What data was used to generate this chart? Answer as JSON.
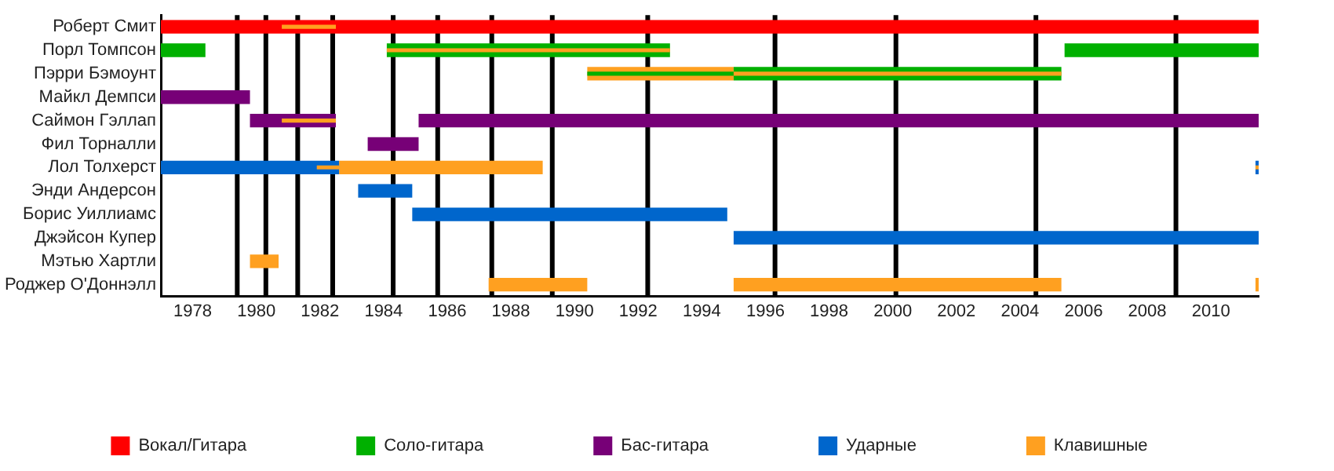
{
  "chart_data": {
    "type": "bar",
    "orientation": "horizontal",
    "categories": [
      "Роберт Смит",
      "Порл Томпсон",
      "Пэрри Бэмоунт",
      "Майкл Демпси",
      "Саймон Гэллап",
      "Фил Торналли",
      "Лол Толхерст",
      "Энди Андерсон",
      "Борис Уиллиамс",
      "Джэйсон Купер",
      "Мэтью Хартли",
      "Роджер О'Доннэлл"
    ],
    "series": [
      {
        "name": "Вокал/Гитара",
        "color": "#ff0000",
        "base": [
          1977,
          null,
          null,
          null,
          null,
          null,
          null,
          null,
          null,
          null,
          null,
          null
        ],
        "values": [
          34.5,
          null,
          null,
          null,
          null,
          null,
          null,
          null,
          null,
          null,
          null,
          null
        ]
      },
      {
        "name": "Соло-гитара",
        "color": "#00b000",
        "base": [
          null,
          1977,
          1995.0,
          null,
          null,
          null,
          null,
          null,
          null,
          null,
          null,
          null
        ],
        "values": [
          null,
          1.4,
          10.3,
          null,
          null,
          null,
          null,
          null,
          null,
          null,
          null,
          null
        ]
      },
      {
        "name": "Бас-гитара",
        "color": "#770077",
        "base": [
          null,
          null,
          null,
          1977,
          1979.8,
          1983.5,
          null,
          null,
          null,
          null,
          null,
          null
        ],
        "values": [
          null,
          null,
          null,
          2.8,
          2.7,
          1.6,
          null,
          null,
          null,
          null,
          null,
          null
        ]
      },
      {
        "name": "Ударные",
        "color": "#0066cc",
        "base": [
          null,
          null,
          null,
          null,
          null,
          null,
          1977,
          1983.2,
          1984.9,
          1995.0,
          null,
          null
        ],
        "values": [
          null,
          null,
          null,
          null,
          null,
          null,
          5.6,
          1.7,
          9.9,
          16.5,
          null,
          null
        ]
      },
      {
        "name": "Клавишные",
        "color": "#ffa020",
        "base": [
          1980.8,
          null,
          1990.4,
          null,
          1980.8,
          null,
          1981.9,
          null,
          null,
          null,
          1979.8,
          1987.3
        ],
        "values": [
          1.7,
          null,
          4.6,
          null,
          1.7,
          null,
          0.7,
          null,
          null,
          null,
          0.9,
          3.1
        ]
      },
      {
        "color": "#00b000",
        "base": [
          null,
          1984.1,
          1990.4,
          null,
          null,
          null,
          null,
          null,
          null,
          null,
          null,
          null
        ],
        "values": [
          null,
          8.9,
          4.6,
          null,
          null,
          null,
          null,
          null,
          null,
          null,
          null,
          null
        ]
      },
      {
        "color": "#770077",
        "base": [
          null,
          null,
          null,
          null,
          1985.1,
          null,
          null,
          null,
          null,
          null,
          null,
          null
        ],
        "values": [
          null,
          null,
          null,
          null,
          26.4,
          null,
          null,
          null,
          null,
          null,
          null,
          null
        ]
      },
      {
        "color": "#ffa020",
        "base": [
          null,
          1984.1,
          1995.0,
          null,
          null,
          null,
          1982.6,
          null,
          null,
          null,
          null,
          1995.0
        ],
        "values": [
          null,
          8.9,
          10.3,
          null,
          null,
          null,
          6.4,
          null,
          null,
          null,
          null,
          10.3
        ]
      },
      {
        "color": "#00b000",
        "base": [
          null,
          2005.4,
          null,
          null,
          null,
          null,
          null,
          null,
          null,
          null,
          null,
          null
        ],
        "values": [
          null,
          6.1,
          null,
          null,
          null,
          null,
          null,
          null,
          null,
          null,
          null,
          null
        ]
      },
      {
        "color": "#0066cc",
        "base": [
          null,
          null,
          null,
          null,
          null,
          null,
          2011.4,
          null,
          null,
          null,
          null,
          null
        ],
        "values": [
          null,
          null,
          null,
          null,
          null,
          null,
          0.1,
          null,
          null,
          null,
          null,
          null
        ]
      },
      {
        "color": "#ffa020",
        "base": [
          null,
          null,
          null,
          null,
          null,
          null,
          2011.4,
          null,
          null,
          null,
          null,
          2011.4
        ],
        "values": [
          null,
          null,
          null,
          null,
          null,
          null,
          0.1,
          null,
          null,
          null,
          null,
          0.1
        ]
      }
    ],
    "xlim": [
      1977,
      2011.5
    ],
    "xticks": [
      1978,
      1980,
      1982,
      1984,
      1986,
      1988,
      1990,
      1992,
      1994,
      1996,
      1998,
      2000,
      2002,
      2004,
      2006,
      2008,
      2010
    ],
    "ref_lines": [
      {
        "axis": "x",
        "value": 1979.4,
        "color": "#000000"
      },
      {
        "axis": "x",
        "value": 1980.3,
        "color": "#000000"
      },
      {
        "axis": "x",
        "value": 1981.3,
        "color": "#000000"
      },
      {
        "axis": "x",
        "value": 1982.4,
        "color": "#000000"
      },
      {
        "axis": "x",
        "value": 1984.3,
        "color": "#000000"
      },
      {
        "axis": "x",
        "value": 1985.7,
        "color": "#000000"
      },
      {
        "axis": "x",
        "value": 1987.4,
        "color": "#000000"
      },
      {
        "axis": "x",
        "value": 1989.3,
        "color": "#000000"
      },
      {
        "axis": "x",
        "value": 1992.3,
        "color": "#000000"
      },
      {
        "axis": "x",
        "value": 1996.3,
        "color": "#000000"
      },
      {
        "axis": "x",
        "value": 2000.1,
        "color": "#000000"
      },
      {
        "axis": "x",
        "value": 2004.5,
        "color": "#000000"
      },
      {
        "axis": "x",
        "value": 2008.9,
        "color": "#000000"
      }
    ],
    "grid": false,
    "legend": "bottom"
  }
}
